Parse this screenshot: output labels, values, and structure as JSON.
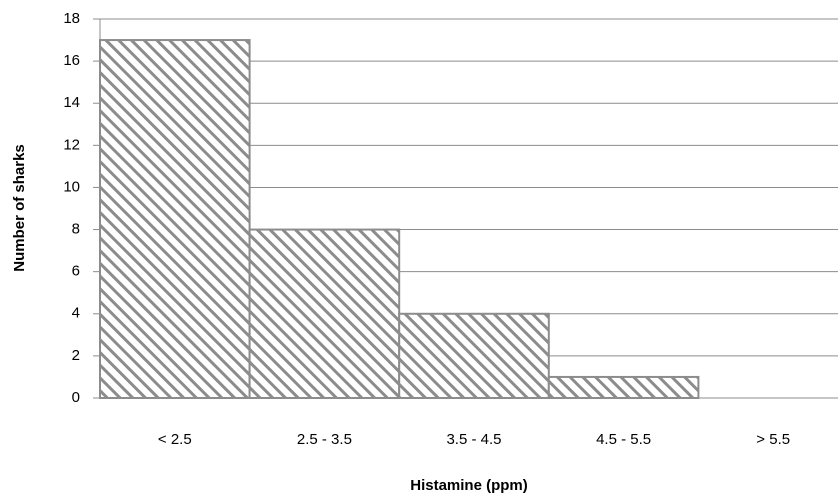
{
  "chart_data": {
    "type": "bar",
    "x_label": "Histamine (ppm)",
    "y_label": "Number of sharks",
    "categories": [
      "< 2.5",
      "2.5 - 3.5",
      "3.5 - 4.5",
      "4.5 - 5.5",
      "> 5.5"
    ],
    "values": [
      17,
      8,
      4,
      1,
      0
    ],
    "color": "#8c8c8c",
    "ylim": [
      0,
      18
    ],
    "yticks": [
      0,
      2,
      4,
      6,
      8,
      10,
      12,
      14,
      16,
      18
    ],
    "grid": true
  }
}
